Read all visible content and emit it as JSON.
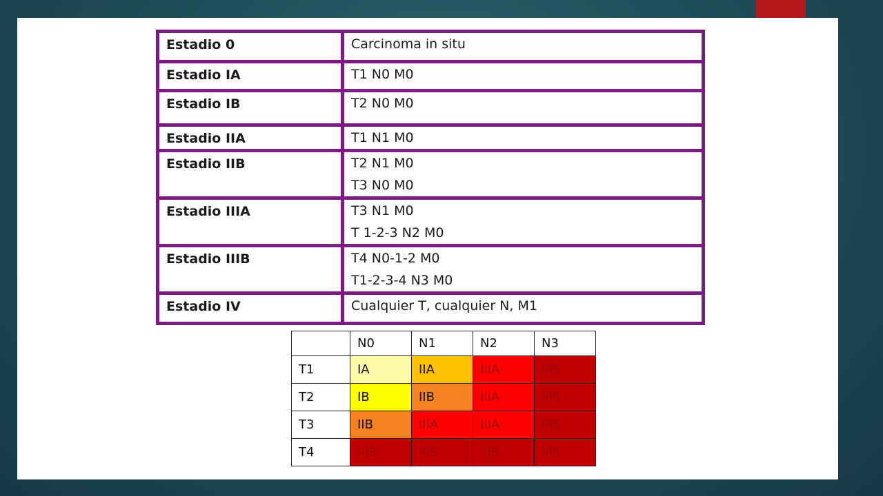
{
  "staging": {
    "rows": [
      {
        "stage": "Estadio 0",
        "lines": [
          "Carcinoma in situ"
        ]
      },
      {
        "stage": "Estadio IA",
        "lines": [
          "T1 N0 M0"
        ]
      },
      {
        "stage": "Estadio IB",
        "lines": [
          "T2 N0 M0"
        ]
      },
      {
        "stage": "Estadio IIA",
        "lines": [
          "T1 N1 M0"
        ]
      },
      {
        "stage": "Estadio IIB",
        "lines": [
          "T2 N1 M0",
          "T3 N0 M0"
        ]
      },
      {
        "stage": "Estadio IIIA",
        "lines": [
          "T3 N1 M0",
          "T 1-2-3 N2 M0"
        ]
      },
      {
        "stage": "Estadio IIIB",
        "lines": [
          "T4 N0-1-2 M0",
          "T1-2-3-4 N3 M0"
        ]
      },
      {
        "stage": "Estadio IV",
        "lines": [
          "Cualquier T, cualquier N, M1"
        ]
      }
    ]
  },
  "matrix": {
    "columns": [
      "N0",
      "N1",
      "N2",
      "N3"
    ],
    "rows": [
      {
        "label": "T1",
        "cells": [
          "IA",
          "IIA",
          "IIIA",
          "IIIB"
        ]
      },
      {
        "label": "T2",
        "cells": [
          "IB",
          "IIB",
          "IIIA",
          "IIIB"
        ]
      },
      {
        "label": "T3",
        "cells": [
          "IIB",
          "IIIA",
          "IIIA",
          "IIIB"
        ]
      },
      {
        "label": "T4",
        "cells": [
          "IIIB",
          "IIIB",
          "IIIB",
          "IIIB"
        ]
      }
    ],
    "colors": {
      "IA": "#fffaa8",
      "IB": "#ffff00",
      "IIA": "#ffc000",
      "IIB": "#f58220",
      "IIIA": "#ff0000",
      "IIIB": "#c00000"
    }
  }
}
